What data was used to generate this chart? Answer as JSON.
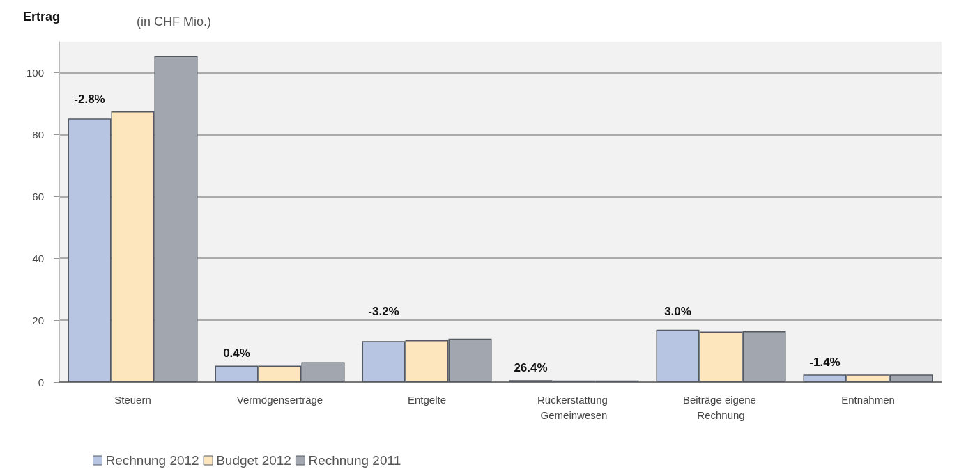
{
  "chart_data": {
    "type": "bar",
    "title": "Ertrag",
    "ylabel": "(in CHF Mio.)",
    "categories": [
      "Steuern",
      "Vermögenserträge",
      "Entgelte",
      "Rückerstattung Gemeinwesen",
      "Beiträge eigene Rechnung",
      "Entnahmen"
    ],
    "series": [
      {
        "name": "Rechnung 2012",
        "color": "#b7c5e3",
        "values": [
          85.2,
          5.3,
          13.2,
          0.6,
          16.9,
          2.4
        ]
      },
      {
        "name": "Budget 2012",
        "color": "#fde5bd",
        "values": [
          87.5,
          5.3,
          13.5,
          0.5,
          16.3,
          2.4
        ]
      },
      {
        "name": "Rechnung 2011",
        "color": "#a2a6ae",
        "values": [
          105.4,
          6.4,
          14.0,
          0.5,
          16.4,
          2.4
        ]
      }
    ],
    "ylim": [
      0,
      110
    ],
    "yticks": [
      0,
      20,
      40,
      60,
      80,
      100
    ],
    "grid": "y",
    "legend": "bottom left",
    "annotations": [
      "-2.8%",
      "0.4%",
      "-3.2%",
      "26.4%",
      "3.0%",
      "-1.4%"
    ]
  }
}
